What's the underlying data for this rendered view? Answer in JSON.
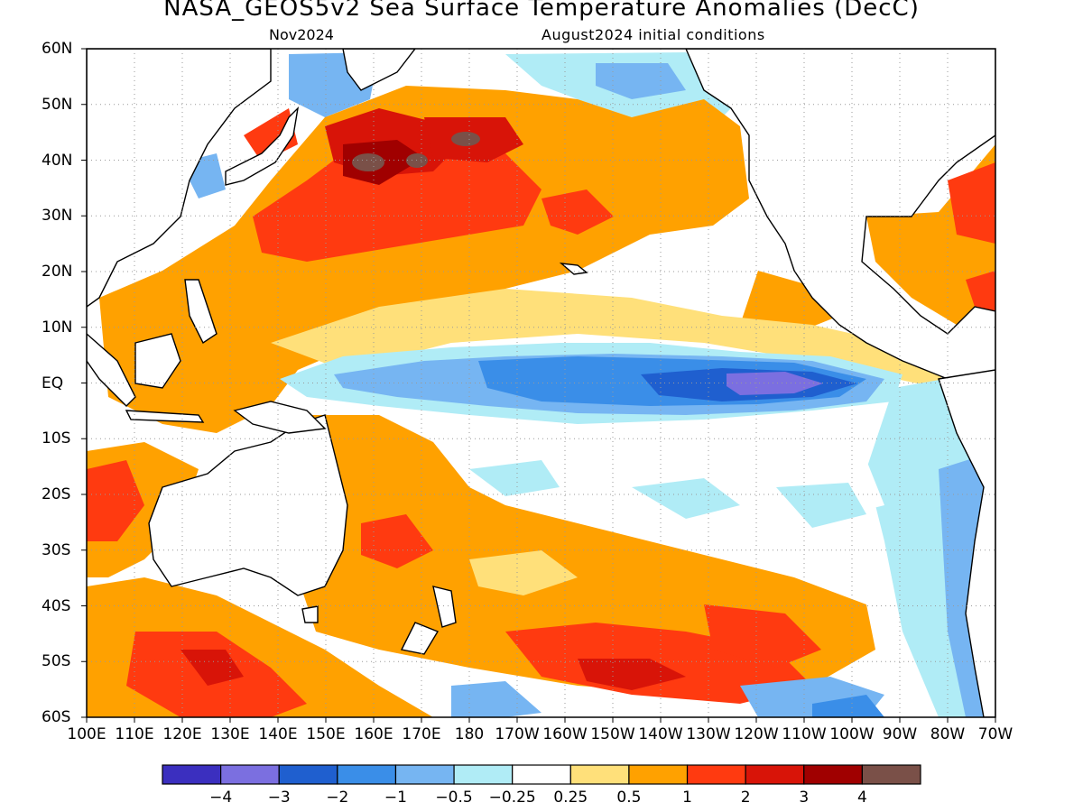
{
  "title": "NASA_GEOS5v2 Sea Surface Temperature Anomalies (DecC)",
  "subtitle_left": "Nov2024",
  "subtitle_right": "August2024 initial conditions",
  "lat_labels": [
    "60N",
    "50N",
    "40N",
    "30N",
    "20N",
    "10N",
    "EQ",
    "10S",
    "20S",
    "30S",
    "40S",
    "50S",
    "60S"
  ],
  "lon_labels": [
    "100E",
    "110E",
    "120E",
    "130E",
    "140E",
    "150E",
    "160E",
    "170E",
    "180",
    "170W",
    "160W",
    "150W",
    "140W",
    "130W",
    "120W",
    "110W",
    "100W",
    "90W",
    "80W",
    "70W"
  ],
  "colorbar": {
    "colors": [
      "#3b2fbf",
      "#7b6fe0",
      "#1f5fcf",
      "#3a8ee8",
      "#76b5f2",
      "#b0ecf6",
      "#ffffff",
      "#ffe07a",
      "#ffa100",
      "#ff3a10",
      "#d81408",
      "#a00000",
      "#7a5048"
    ],
    "labels": [
      "−4",
      "−3",
      "−2",
      "−1",
      "−0.5",
      "−0.25",
      "0.25",
      "0.5",
      "1",
      "2",
      "3",
      "4"
    ]
  },
  "colors": {
    "land": "#ffffff",
    "neutral": "#ffffff",
    "grid": "#9a9a9a",
    "coast": "#000000"
  }
}
